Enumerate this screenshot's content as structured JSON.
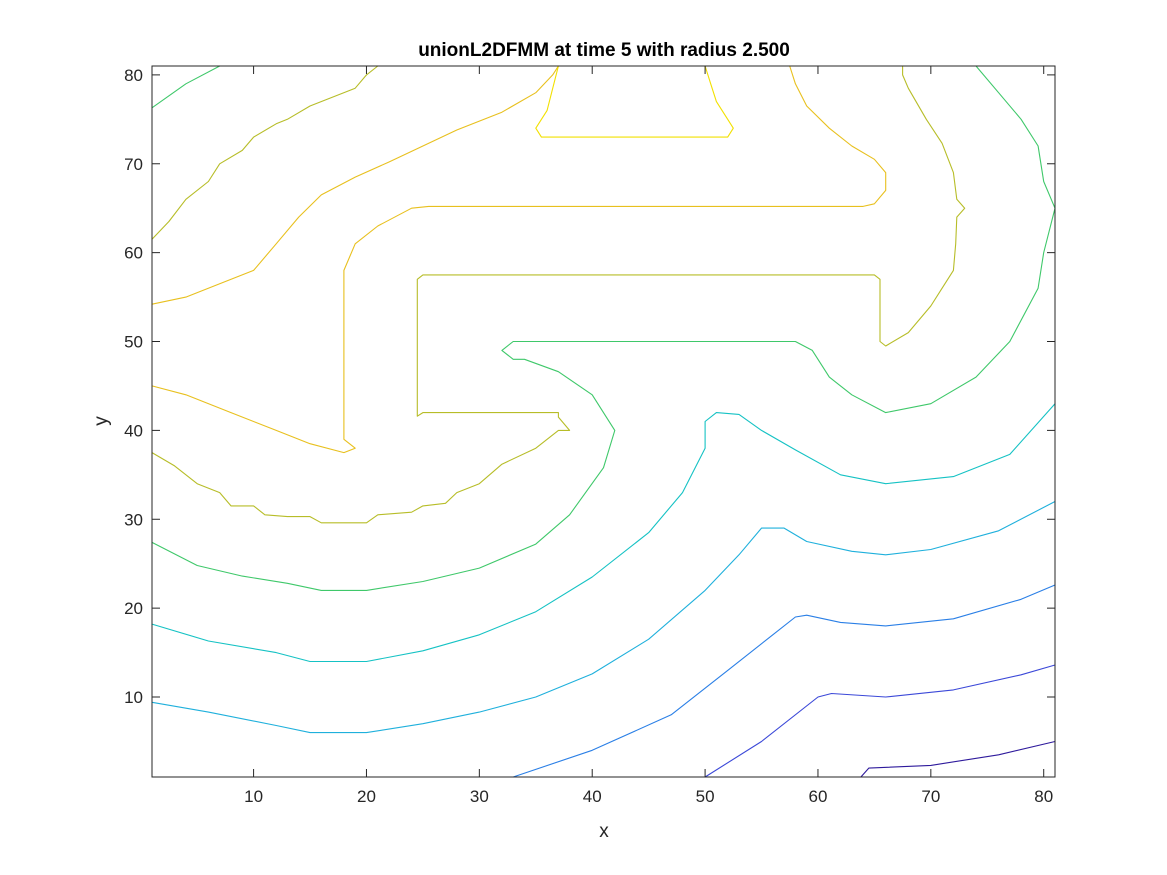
{
  "chart_data": {
    "type": "line",
    "title": "unionL2DFMM at time 5 with radius 2.500",
    "xlabel": "x",
    "ylabel": "y",
    "xlim": [
      1,
      81
    ],
    "ylim": [
      1,
      81
    ],
    "xticks": [
      10,
      20,
      30,
      40,
      50,
      60,
      70,
      80
    ],
    "yticks": [
      10,
      20,
      30,
      40,
      50,
      60,
      70,
      80
    ],
    "grid": false,
    "legend": "none",
    "series": [
      {
        "color": "#2e1a9c",
        "points": [
          [
            63.8,
            1
          ],
          [
            64.5,
            2
          ],
          [
            70,
            2.3
          ],
          [
            76,
            3.5
          ],
          [
            81,
            5
          ]
        ]
      },
      {
        "color": "#3b48d8",
        "points": [
          [
            50,
            1
          ],
          [
            55,
            5
          ],
          [
            60,
            10
          ],
          [
            61.2,
            10.4
          ],
          [
            66,
            10
          ],
          [
            72,
            10.8
          ],
          [
            78,
            12.5
          ],
          [
            81,
            13.6
          ]
        ]
      },
      {
        "color": "#2a7fe6",
        "points": [
          [
            33,
            1
          ],
          [
            40,
            4
          ],
          [
            47,
            8
          ],
          [
            52,
            13
          ],
          [
            56,
            17
          ],
          [
            58,
            19
          ],
          [
            59,
            19.2
          ],
          [
            62,
            18.4
          ],
          [
            66,
            18
          ],
          [
            72,
            18.8
          ],
          [
            78,
            21
          ],
          [
            81,
            22.6
          ]
        ]
      },
      {
        "color": "#1fb0dc",
        "points": [
          [
            1,
            9.4
          ],
          [
            6,
            8.3
          ],
          [
            12,
            6.8
          ],
          [
            15,
            6
          ],
          [
            20,
            6
          ],
          [
            25,
            7
          ],
          [
            30,
            8.3
          ],
          [
            35,
            10
          ],
          [
            40,
            12.6
          ],
          [
            45,
            16.5
          ],
          [
            50,
            22
          ],
          [
            53,
            26
          ],
          [
            55,
            29
          ],
          [
            57,
            29
          ],
          [
            59,
            27.5
          ],
          [
            63,
            26.4
          ],
          [
            66,
            26
          ],
          [
            70,
            26.6
          ],
          [
            76,
            28.7
          ],
          [
            81,
            32
          ]
        ]
      },
      {
        "color": "#15c2c4",
        "points": [
          [
            1,
            18.2
          ],
          [
            6,
            16.3
          ],
          [
            12,
            15
          ],
          [
            15,
            14
          ],
          [
            20,
            14
          ],
          [
            25,
            15.2
          ],
          [
            30,
            17
          ],
          [
            35,
            19.6
          ],
          [
            40,
            23.5
          ],
          [
            45,
            28.5
          ],
          [
            48,
            33
          ],
          [
            50,
            38
          ],
          [
            50,
            41
          ],
          [
            51,
            42
          ],
          [
            53,
            41.8
          ],
          [
            55,
            40
          ],
          [
            58,
            37.8
          ],
          [
            62,
            35
          ],
          [
            66,
            34
          ],
          [
            72,
            34.8
          ],
          [
            77,
            37.3
          ],
          [
            81,
            43
          ]
        ]
      },
      {
        "color": "#3fc86a",
        "points": [
          [
            1,
            27.4
          ],
          [
            5,
            24.8
          ],
          [
            9,
            23.6
          ],
          [
            13,
            22.8
          ],
          [
            16,
            22
          ],
          [
            20,
            22
          ],
          [
            25,
            23
          ],
          [
            30,
            24.5
          ],
          [
            35,
            27.2
          ],
          [
            38,
            30.5
          ],
          [
            41,
            35.8
          ],
          [
            42,
            40
          ],
          [
            40,
            44
          ],
          [
            37,
            46.6
          ],
          [
            34,
            48
          ],
          [
            33,
            48
          ],
          [
            32,
            49
          ],
          [
            33,
            50
          ],
          [
            58,
            50
          ],
          [
            59.5,
            49
          ],
          [
            61,
            46
          ],
          [
            63,
            44
          ],
          [
            66,
            42
          ],
          [
            70,
            43
          ],
          [
            74,
            46
          ],
          [
            77,
            50
          ],
          [
            79.5,
            56
          ],
          [
            80,
            60
          ],
          [
            81,
            65
          ],
          [
            80,
            68
          ],
          [
            79.5,
            72
          ],
          [
            78,
            75
          ],
          [
            76,
            78
          ],
          [
            74,
            81
          ]
        ]
      },
      {
        "color": "#3fc86a",
        "points": [
          [
            1,
            76.3
          ],
          [
            4,
            79
          ],
          [
            7,
            81
          ]
        ]
      },
      {
        "color": "#b7bd28",
        "points": [
          [
            1,
            37.5
          ],
          [
            3,
            36
          ],
          [
            5,
            34
          ],
          [
            7,
            33
          ],
          [
            8,
            31.5
          ],
          [
            10,
            31.5
          ],
          [
            11,
            30.5
          ],
          [
            13,
            30.3
          ],
          [
            15,
            30.3
          ],
          [
            16,
            29.6
          ],
          [
            20,
            29.6
          ],
          [
            21,
            30.5
          ],
          [
            24,
            30.8
          ],
          [
            25,
            31.5
          ],
          [
            27,
            31.8
          ],
          [
            28,
            33
          ],
          [
            30,
            34
          ],
          [
            32,
            36.2
          ],
          [
            35,
            38
          ],
          [
            37,
            40
          ],
          [
            38,
            40
          ],
          [
            37,
            41.5
          ],
          [
            37,
            42
          ],
          [
            36.5,
            42
          ],
          [
            25,
            42
          ],
          [
            24.5,
            41.6
          ],
          [
            24.5,
            57
          ],
          [
            25,
            57.5
          ],
          [
            65,
            57.5
          ],
          [
            65.5,
            57
          ],
          [
            65.5,
            50
          ],
          [
            66,
            49.5
          ],
          [
            68,
            51
          ],
          [
            70,
            54
          ],
          [
            71,
            56
          ],
          [
            72,
            58
          ],
          [
            72.2,
            61
          ],
          [
            72.3,
            64
          ],
          [
            73,
            65
          ],
          [
            72.3,
            66
          ],
          [
            72,
            69
          ],
          [
            71,
            72.3
          ],
          [
            69.6,
            75
          ],
          [
            68,
            78.5
          ],
          [
            67.5,
            80
          ],
          [
            67.5,
            81
          ]
        ]
      },
      {
        "color": "#b7bd28",
        "points": [
          [
            1,
            61.5
          ],
          [
            2.5,
            63.5
          ],
          [
            4,
            66
          ],
          [
            6,
            68
          ],
          [
            7,
            70
          ],
          [
            9,
            71.5
          ],
          [
            10,
            73
          ],
          [
            12,
            74.5
          ],
          [
            13,
            75
          ],
          [
            15,
            76.5
          ],
          [
            17,
            77.5
          ],
          [
            19,
            78.5
          ],
          [
            20,
            80
          ],
          [
            21,
            81
          ]
        ]
      },
      {
        "color": "#e8c01e",
        "points": [
          [
            1,
            45
          ],
          [
            4,
            44
          ],
          [
            8,
            42
          ],
          [
            12,
            40
          ],
          [
            15,
            38.5
          ],
          [
            18,
            37.5
          ],
          [
            19,
            38
          ],
          [
            18,
            39
          ],
          [
            18,
            41
          ],
          [
            18,
            58
          ],
          [
            19,
            61
          ],
          [
            21,
            63
          ],
          [
            24,
            65
          ],
          [
            25.5,
            65.2
          ],
          [
            64,
            65.2
          ],
          [
            65,
            65.5
          ],
          [
            66,
            67
          ],
          [
            66,
            69
          ],
          [
            65,
            70.5
          ],
          [
            63,
            72
          ],
          [
            61,
            74
          ],
          [
            59,
            76.5
          ],
          [
            58,
            79
          ],
          [
            57.5,
            81
          ]
        ]
      },
      {
        "color": "#e8c01e",
        "points": [
          [
            1,
            54.2
          ],
          [
            4,
            55
          ],
          [
            7,
            56.5
          ],
          [
            10,
            58
          ],
          [
            12,
            61
          ],
          [
            14,
            64
          ],
          [
            16,
            66.5
          ],
          [
            19,
            68.5
          ],
          [
            22,
            70.2
          ],
          [
            25,
            72
          ],
          [
            28,
            73.8
          ],
          [
            32,
            75.8
          ],
          [
            35,
            78
          ],
          [
            36.5,
            80
          ],
          [
            37,
            81
          ]
        ]
      },
      {
        "color": "#f2e000",
        "points": [
          [
            37,
            81
          ],
          [
            36,
            76
          ],
          [
            35,
            74
          ],
          [
            35.5,
            73
          ],
          [
            52,
            73
          ],
          [
            52.5,
            74
          ],
          [
            52,
            75
          ],
          [
            51,
            77
          ],
          [
            50.5,
            79
          ],
          [
            50,
            81
          ]
        ]
      }
    ]
  }
}
